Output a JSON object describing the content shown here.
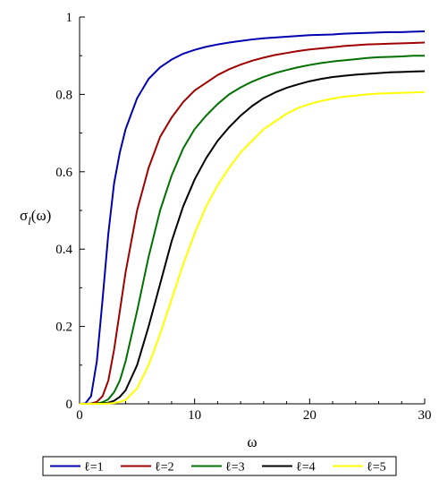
{
  "chart_data": {
    "type": "line",
    "title": "",
    "xlabel": "ω",
    "ylabel": "σ",
    "ylabel_sub": "l",
    "ylabel_suffix": "(ω)",
    "xlim": [
      0,
      30
    ],
    "ylim": [
      0,
      1
    ],
    "x_ticks": [
      0,
      10,
      20,
      30
    ],
    "x_tick_labels": [
      "0",
      "10",
      "20",
      "30"
    ],
    "y_ticks": [
      0,
      0.2,
      0.4,
      0.6,
      0.8,
      1
    ],
    "y_tick_labels": [
      "0",
      "0.2",
      "0.4",
      "0.6",
      "0.8",
      "1"
    ],
    "grid": false,
    "legend_position": "bottom",
    "x": [
      0,
      0.5,
      1,
      1.5,
      2,
      2.5,
      3,
      3.5,
      4,
      5,
      6,
      7,
      8,
      9,
      10,
      11,
      12,
      13,
      14,
      15,
      16,
      17,
      18,
      19,
      20,
      21,
      22,
      23,
      24,
      25,
      26,
      27,
      28,
      29,
      30
    ],
    "series": [
      {
        "name": "ℓ=1",
        "color": "#0000b0",
        "values": [
          0,
          0.001,
          0.02,
          0.11,
          0.27,
          0.44,
          0.57,
          0.65,
          0.71,
          0.79,
          0.84,
          0.87,
          0.89,
          0.905,
          0.915,
          0.923,
          0.929,
          0.934,
          0.938,
          0.942,
          0.945,
          0.947,
          0.949,
          0.951,
          0.953,
          0.954,
          0.955,
          0.957,
          0.958,
          0.959,
          0.96,
          0.961,
          0.961,
          0.962,
          0.963
        ]
      },
      {
        "name": "ℓ=2",
        "color": "#a00000",
        "values": [
          0,
          0,
          0.001,
          0.005,
          0.02,
          0.06,
          0.14,
          0.24,
          0.34,
          0.5,
          0.61,
          0.69,
          0.74,
          0.78,
          0.81,
          0.83,
          0.85,
          0.865,
          0.877,
          0.887,
          0.895,
          0.902,
          0.907,
          0.912,
          0.916,
          0.919,
          0.922,
          0.925,
          0.927,
          0.929,
          0.93,
          0.931,
          0.932,
          0.933,
          0.934
        ]
      },
      {
        "name": "ℓ=3",
        "color": "#007000",
        "values": [
          0,
          0,
          0,
          0.001,
          0.004,
          0.012,
          0.03,
          0.06,
          0.11,
          0.24,
          0.38,
          0.5,
          0.59,
          0.66,
          0.71,
          0.745,
          0.775,
          0.8,
          0.818,
          0.833,
          0.845,
          0.855,
          0.863,
          0.87,
          0.876,
          0.881,
          0.885,
          0.888,
          0.891,
          0.894,
          0.896,
          0.897,
          0.898,
          0.9,
          0.9
        ]
      },
      {
        "name": "ℓ=4",
        "color": "#000000",
        "values": [
          0,
          0,
          0,
          0,
          0.001,
          0.003,
          0.008,
          0.018,
          0.035,
          0.1,
          0.2,
          0.31,
          0.42,
          0.51,
          0.58,
          0.635,
          0.68,
          0.715,
          0.745,
          0.77,
          0.79,
          0.805,
          0.817,
          0.826,
          0.834,
          0.84,
          0.845,
          0.848,
          0.851,
          0.853,
          0.855,
          0.857,
          0.858,
          0.859,
          0.86
        ]
      },
      {
        "name": "ℓ=5",
        "color": "#ffff00",
        "values": [
          0,
          0,
          0,
          0,
          0,
          0.001,
          0.002,
          0.005,
          0.01,
          0.04,
          0.1,
          0.18,
          0.27,
          0.36,
          0.44,
          0.51,
          0.565,
          0.61,
          0.65,
          0.68,
          0.71,
          0.73,
          0.75,
          0.765,
          0.775,
          0.783,
          0.789,
          0.794,
          0.797,
          0.8,
          0.802,
          0.803,
          0.804,
          0.805,
          0.806
        ]
      }
    ]
  }
}
